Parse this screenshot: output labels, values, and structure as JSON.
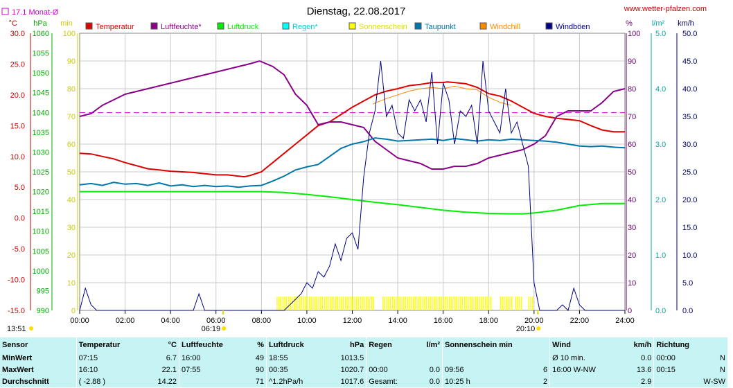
{
  "chart_data": {
    "type": "line",
    "title": "Dienstag, 22.08.2017",
    "source": "www.wetter-pfalzen.com",
    "monthly_avg": {
      "label": "17.1 Monat-Ø",
      "value": 17.1,
      "color": "#cc00cc"
    },
    "x_ticks": [
      "00:00",
      "02:00",
      "04:00",
      "06:00",
      "08:00",
      "10:00",
      "12:00",
      "14:00",
      "16:00",
      "18:00",
      "20:00",
      "22:00",
      "24:00"
    ],
    "x_range": [
      "00:00",
      "24:00"
    ],
    "axes": {
      "temp": {
        "unit": "°C",
        "min": -15,
        "max": 30,
        "ticks": [
          "30.0",
          "25.0",
          "20.0",
          "15.0",
          "10.0",
          "5.0",
          "0.0",
          "-5.0",
          "-10.0",
          "-15.0"
        ],
        "color": "#cc0000"
      },
      "pressure": {
        "unit": "hPa",
        "min": 990,
        "max": 1060,
        "ticks": [
          "1060",
          "1055",
          "1050",
          "1045",
          "1040",
          "1035",
          "1030",
          "1025",
          "1020",
          "1015",
          "1010",
          "1005",
          "1000",
          "995",
          "990"
        ],
        "color": "#00aa00"
      },
      "minutes": {
        "unit": "min",
        "min": 0,
        "max": 100,
        "ticks": [
          "100",
          "90",
          "80",
          "70",
          "60",
          "50",
          "40",
          "30",
          "20",
          "10",
          "0"
        ],
        "color": "#cccc00"
      },
      "percent": {
        "unit": "%",
        "min": 0,
        "max": 100,
        "ticks": [
          "100",
          "90",
          "80",
          "70",
          "60",
          "50",
          "40",
          "30",
          "20",
          "10",
          "0"
        ],
        "color": "#660066"
      },
      "rain": {
        "unit": "l/m²",
        "min": 0,
        "max": 5,
        "ticks": [
          "5.0",
          "4.0",
          "3.0",
          "2.0",
          "1.0",
          "0.0"
        ],
        "color": "#00aaaa"
      },
      "wind": {
        "unit": "km/h",
        "min": 0,
        "max": 50,
        "ticks": [
          "50.0",
          "45.0",
          "40.0",
          "35.0",
          "30.0",
          "25.0",
          "20.0",
          "15.0",
          "10.0",
          "5.0",
          "0.0"
        ],
        "color": "#000066"
      }
    },
    "legend": [
      {
        "name": "Temperatur",
        "color": "#dd0000"
      },
      {
        "name": "Luftfeuchte*",
        "color": "#880088"
      },
      {
        "name": "Luftdruck",
        "color": "#00ee00"
      },
      {
        "name": "Regen*",
        "color": "#00ffff"
      },
      {
        "name": "Sonnenschein",
        "color": "#ffff00"
      },
      {
        "name": "Taupunkt",
        "color": "#0077aa"
      },
      {
        "name": "Windchill",
        "color": "#ff8800"
      },
      {
        "name": "Windböen",
        "color": "#000080"
      }
    ],
    "series": [
      {
        "name": "Temperatur",
        "axis": "temp",
        "color": "#dd0000",
        "x": [
          0,
          0.5,
          1,
          1.5,
          2,
          2.5,
          3,
          3.5,
          4,
          4.5,
          5,
          5.5,
          6,
          6.5,
          7,
          7.25,
          7.5,
          8,
          8.5,
          9,
          9.5,
          10,
          10.5,
          11,
          11.5,
          12,
          12.5,
          13,
          13.5,
          14,
          14.5,
          15,
          15.5,
          16,
          16.17,
          16.5,
          17,
          17.5,
          18,
          18.5,
          19,
          19.5,
          20,
          20.5,
          21,
          21.5,
          22,
          22.5,
          23,
          23.5,
          24
        ],
        "y": [
          10.5,
          10.4,
          10.0,
          9.6,
          9.0,
          8.5,
          8.0,
          7.8,
          7.6,
          7.5,
          7.4,
          7.2,
          7.0,
          7.0,
          6.8,
          6.7,
          6.9,
          7.5,
          9.0,
          10.5,
          12.0,
          13.5,
          15.0,
          15.6,
          16.8,
          18.0,
          19.0,
          20.0,
          20.6,
          21.0,
          21.5,
          21.7,
          22.0,
          22.0,
          22.1,
          22.0,
          21.8,
          21.2,
          20.2,
          19.8,
          19.0,
          18.0,
          17.0,
          16.5,
          16.2,
          16.0,
          15.8,
          15.0,
          14.3,
          14.0,
          14.0
        ]
      },
      {
        "name": "Luftfeuchte*",
        "axis": "percent",
        "color": "#880088",
        "x": [
          0,
          0.5,
          1,
          1.5,
          2,
          2.5,
          3,
          3.5,
          4,
          4.5,
          5,
          5.5,
          6,
          6.5,
          7,
          7.5,
          7.92,
          8.5,
          9,
          9.5,
          10,
          10.5,
          11,
          11.5,
          12,
          12.5,
          13,
          13.5,
          14,
          14.5,
          15,
          15.5,
          16,
          16.5,
          17,
          17.5,
          18,
          18.5,
          19,
          19.5,
          20,
          20.5,
          21,
          21.5,
          22,
          22.5,
          23,
          23.5,
          24
        ],
        "y": [
          70,
          71,
          74,
          76,
          78,
          79,
          80,
          81,
          82,
          83,
          84,
          85,
          86,
          87,
          88,
          89,
          90,
          88,
          85,
          78,
          74,
          67,
          68,
          68,
          67,
          66,
          61,
          58,
          55,
          54,
          53,
          51,
          51,
          52,
          52,
          53,
          55,
          56,
          57,
          58,
          60,
          63,
          70,
          72,
          72,
          72,
          75,
          79,
          80
        ]
      },
      {
        "name": "Luftdruck",
        "axis": "pressure",
        "color": "#00ee00",
        "x": [
          0,
          1,
          2,
          3,
          4,
          5,
          6,
          7,
          8,
          9,
          10,
          11,
          12,
          13,
          14,
          15,
          16,
          17,
          18,
          19,
          19.5,
          20,
          21,
          22,
          23,
          24
        ],
        "y": [
          1020.0,
          1020.0,
          1020.0,
          1020.0,
          1020.0,
          1020.0,
          1020.0,
          1020.0,
          1020.0,
          1019.8,
          1019.3,
          1018.7,
          1018.0,
          1017.3,
          1016.7,
          1016.0,
          1015.3,
          1014.8,
          1014.5,
          1014.4,
          1014.4,
          1014.6,
          1015.3,
          1016.5,
          1017.0,
          1017.0
        ]
      },
      {
        "name": "Taupunkt",
        "axis": "temp",
        "color": "#0077aa",
        "x": [
          0,
          0.5,
          1,
          1.5,
          2,
          2.5,
          3,
          3.5,
          4,
          4.5,
          5,
          5.5,
          6,
          6.5,
          7,
          7.5,
          8,
          8.5,
          9,
          9.5,
          10,
          10.5,
          11,
          11.5,
          12,
          12.5,
          13,
          13.5,
          14,
          14.5,
          15,
          15.5,
          16,
          16.5,
          17,
          17.5,
          18,
          18.5,
          19,
          19.5,
          20,
          20.5,
          21,
          21.5,
          22,
          22.5,
          23,
          23.5,
          24
        ],
        "y": [
          5.4,
          5.6,
          5.3,
          5.8,
          5.5,
          5.6,
          5.3,
          5.7,
          5.2,
          5.4,
          5.1,
          5.3,
          5.1,
          5.2,
          5.0,
          5.2,
          5.3,
          6.0,
          6.8,
          7.8,
          8.3,
          8.7,
          10.0,
          11.3,
          12.0,
          12.4,
          13.0,
          12.8,
          12.5,
          12.6,
          12.7,
          12.8,
          12.6,
          12.9,
          12.7,
          12.5,
          12.7,
          12.6,
          12.8,
          12.7,
          12.6,
          12.5,
          12.3,
          12.0,
          11.7,
          11.6,
          11.7,
          11.5,
          11.4
        ]
      },
      {
        "name": "Windchill",
        "axis": "temp",
        "color": "#ff8800",
        "x": [
          12.9,
          13.5,
          14,
          14.5,
          15,
          15.5,
          16,
          16.5,
          17,
          17.5,
          18,
          18.5,
          19
        ],
        "y": [
          18.5,
          19.4,
          20.0,
          20.6,
          21.0,
          21.2,
          21.0,
          21.4,
          21.0,
          20.8,
          19.6,
          18.8,
          18.3
        ]
      },
      {
        "name": "Windböen",
        "axis": "wind",
        "color": "#000080",
        "x": [
          0,
          0.25,
          0.5,
          0.75,
          1,
          1.5,
          2,
          3,
          4,
          5,
          5.25,
          5.5,
          5.75,
          6,
          8,
          9,
          9.5,
          9.75,
          10,
          10.25,
          10.5,
          10.75,
          11,
          11.25,
          11.5,
          11.75,
          12,
          12.25,
          12.5,
          12.75,
          13,
          13.25,
          13.5,
          13.75,
          14,
          14.25,
          14.5,
          14.75,
          15,
          15.25,
          15.5,
          15.75,
          16,
          16.25,
          16.5,
          16.75,
          17,
          17.25,
          17.5,
          17.75,
          18,
          18.25,
          18.5,
          18.75,
          19,
          19.25,
          19.5,
          19.75,
          20,
          20.25,
          20.5,
          21,
          21.25,
          21.5,
          21.75,
          22,
          22.25,
          22.5,
          23,
          24
        ],
        "y": [
          0,
          4,
          1,
          0,
          0,
          0,
          0,
          0,
          0,
          0,
          3,
          0,
          0,
          0,
          0,
          0,
          2,
          3,
          5,
          4,
          7,
          6,
          8,
          12,
          9,
          13,
          14,
          11,
          24,
          32,
          36,
          45,
          35,
          37,
          32,
          31,
          38,
          36,
          38,
          34,
          43,
          30,
          41,
          38,
          30,
          36,
          35,
          37,
          30,
          45,
          36,
          34,
          32,
          40,
          32,
          34,
          30,
          26,
          5,
          0,
          0,
          0,
          1,
          0,
          4,
          1,
          0,
          0,
          0,
          0
        ]
      }
    ],
    "sunshine_periods": [
      [
        8.67,
        13.0
      ],
      [
        13.33,
        18.08
      ],
      [
        18.5,
        19.0
      ],
      [
        19.17,
        19.5
      ],
      [
        19.75,
        19.92
      ]
    ],
    "sunrise": "06:19",
    "sunset": "20:10",
    "current_time": "13:51"
  },
  "summary": {
    "headers": [
      "Sensor",
      "Temperatur",
      "°C",
      "Luftfeuchte",
      "%",
      "Luftdruck",
      "hPa",
      "Regen",
      "l/m²",
      "Sonnenschein min",
      "Wind",
      "km/h",
      "Richtung"
    ],
    "rows": [
      {
        "label": "MinWert",
        "temp_time": "07:15",
        "temp": "6.7",
        "hum_time": "16:00",
        "hum": "49",
        "pres_time": "18:55",
        "pres": "1013.5",
        "rain_label": "",
        "rain": "",
        "sun_label": "",
        "sun": "",
        "wind_label": "Ø 10 min.",
        "wind": "0.0",
        "dir_time": "00:00",
        "dir": "N"
      },
      {
        "label": "MaxWert",
        "temp_time": "16:10",
        "temp": "22.1",
        "hum_time": "07:55",
        "hum": "90",
        "pres_time": "00:35",
        "pres": "1020.7",
        "rain_label": "00:00",
        "rain": "0.0",
        "sun_label": "09:56",
        "sun": "6",
        "wind_label": "16:00   W-NW",
        "wind": "13.6",
        "dir_time": "00:15",
        "dir": "N"
      },
      {
        "label": "Durchschnitt",
        "temp_time": "( -2.88 )",
        "temp": "14.22",
        "hum_time": "",
        "hum": "71",
        "pres_time": "^1.2hPa/h",
        "pres": "1017.6",
        "rain_label": "Gesamt:",
        "rain": "0.0",
        "sun_label": "10:25 h",
        "sun": "2",
        "wind_label": "",
        "wind": "2.9",
        "dir_time": "",
        "dir": "W-SW"
      }
    ]
  }
}
